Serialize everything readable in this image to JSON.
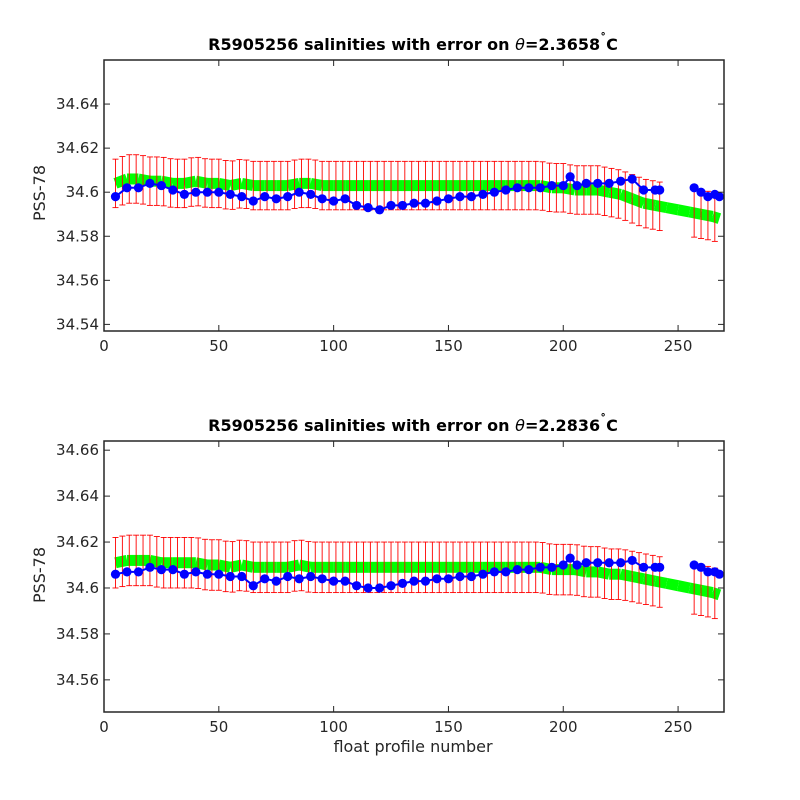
{
  "chart_data": [
    {
      "type": "scatter",
      "title": "R5905256 salinities with error on θ=2.3658˚C",
      "title_parts": {
        "prefix": "R5905256 salinities with error on ",
        "theta": "θ",
        "suffix": "=2.3658",
        "degree": "˚",
        "unit": "C"
      },
      "xlabel": "",
      "ylabel": "PSS-78",
      "xlim": [
        0,
        270
      ],
      "ylim": [
        34.537,
        34.66
      ],
      "xticks": [
        0,
        50,
        100,
        150,
        200,
        250
      ],
      "xtick_labels": [
        "0",
        "50",
        "100",
        "150",
        "200",
        "250"
      ],
      "yticks": [
        34.54,
        34.56,
        34.58,
        34.6,
        34.62,
        34.64
      ],
      "ytick_labels": [
        "34.54",
        "34.56",
        "34.58",
        "34.6",
        "34.62",
        "34.64"
      ],
      "grid": false,
      "series": [
        {
          "role": "float salinity",
          "color": "#0000ff",
          "x": [
            5,
            10,
            15,
            20,
            25,
            30,
            35,
            40,
            45,
            50,
            55,
            60,
            65,
            70,
            75,
            80,
            85,
            90,
            95,
            100,
            105,
            110,
            115,
            120,
            125,
            130,
            135,
            140,
            145,
            150,
            155,
            160,
            165,
            170,
            175,
            180,
            185,
            190,
            195,
            200,
            203,
            206,
            210,
            215,
            220,
            225,
            230,
            235,
            240,
            242,
            257,
            260,
            263,
            266,
            268
          ],
          "y": [
            34.598,
            34.602,
            34.602,
            34.604,
            34.603,
            34.601,
            34.599,
            34.6,
            34.6,
            34.6,
            34.599,
            34.598,
            34.596,
            34.598,
            34.597,
            34.598,
            34.6,
            34.599,
            34.597,
            34.596,
            34.597,
            34.594,
            34.593,
            34.592,
            34.594,
            34.594,
            34.595,
            34.595,
            34.596,
            34.597,
            34.598,
            34.598,
            34.599,
            34.6,
            34.601,
            34.602,
            34.602,
            34.602,
            34.603,
            34.603,
            34.607,
            34.603,
            34.604,
            34.604,
            34.604,
            34.605,
            34.606,
            34.601,
            34.601,
            34.601,
            34.602,
            34.6,
            34.598,
            34.599,
            34.598
          ]
        },
        {
          "role": "mapped salinity",
          "color": "#00ff00",
          "x": [
            5,
            10,
            15,
            20,
            25,
            30,
            35,
            40,
            45,
            50,
            55,
            60,
            65,
            70,
            75,
            80,
            85,
            90,
            95,
            100,
            105,
            110,
            115,
            120,
            125,
            130,
            135,
            140,
            145,
            150,
            155,
            160,
            165,
            170,
            175,
            180,
            185,
            190,
            195,
            200,
            205,
            210,
            215,
            220,
            225,
            230,
            235,
            240,
            245,
            250,
            255,
            260,
            265,
            268
          ],
          "y": [
            34.604,
            34.606,
            34.606,
            34.605,
            34.605,
            34.604,
            34.604,
            34.605,
            34.604,
            34.604,
            34.603,
            34.604,
            34.603,
            34.603,
            34.603,
            34.603,
            34.604,
            34.604,
            34.603,
            34.603,
            34.603,
            34.603,
            34.603,
            34.603,
            34.603,
            34.603,
            34.603,
            34.603,
            34.603,
            34.603,
            34.603,
            34.603,
            34.603,
            34.603,
            34.603,
            34.603,
            34.603,
            34.603,
            34.602,
            34.602,
            34.601,
            34.601,
            34.601,
            34.6,
            34.599,
            34.597,
            34.595,
            34.594,
            34.593,
            34.592,
            34.591,
            34.59,
            34.589,
            34.588
          ]
        },
        {
          "role": "mapping error",
          "color": "#ff0000",
          "x_start": 5,
          "x_end": 268,
          "x_step": 3,
          "error": 0.011,
          "breaks": [
            [
              243,
              257
            ]
          ]
        }
      ]
    },
    {
      "type": "scatter",
      "title": "R5905256 salinities with error on θ=2.2836˚C",
      "title_parts": {
        "prefix": "R5905256 salinities with error on ",
        "theta": "θ",
        "suffix": "=2.2836",
        "degree": "˚",
        "unit": "C"
      },
      "xlabel": "float profile number",
      "ylabel": "PSS-78",
      "xlim": [
        0,
        270
      ],
      "ylim": [
        34.546,
        34.664
      ],
      "xticks": [
        0,
        50,
        100,
        150,
        200,
        250
      ],
      "xtick_labels": [
        "0",
        "50",
        "100",
        "150",
        "200",
        "250"
      ],
      "yticks": [
        34.56,
        34.58,
        34.6,
        34.62,
        34.64,
        34.66
      ],
      "ytick_labels": [
        "34.56",
        "34.58",
        "34.6",
        "34.62",
        "34.64",
        "34.66"
      ],
      "grid": false,
      "series": [
        {
          "role": "float salinity",
          "color": "#0000ff",
          "x": [
            5,
            10,
            15,
            20,
            25,
            30,
            35,
            40,
            45,
            50,
            55,
            60,
            65,
            70,
            75,
            80,
            85,
            90,
            95,
            100,
            105,
            110,
            115,
            120,
            125,
            130,
            135,
            140,
            145,
            150,
            155,
            160,
            165,
            170,
            175,
            180,
            185,
            190,
            195,
            200,
            203,
            206,
            210,
            215,
            220,
            225,
            230,
            235,
            240,
            242,
            257,
            260,
            263,
            266,
            268
          ],
          "y": [
            34.606,
            34.607,
            34.607,
            34.609,
            34.608,
            34.608,
            34.606,
            34.607,
            34.606,
            34.606,
            34.605,
            34.605,
            34.601,
            34.604,
            34.603,
            34.605,
            34.604,
            34.605,
            34.604,
            34.603,
            34.603,
            34.601,
            34.6,
            34.6,
            34.601,
            34.602,
            34.603,
            34.603,
            34.604,
            34.604,
            34.605,
            34.605,
            34.606,
            34.607,
            34.607,
            34.608,
            34.608,
            34.609,
            34.609,
            34.61,
            34.613,
            34.61,
            34.611,
            34.611,
            34.611,
            34.611,
            34.612,
            34.609,
            34.609,
            34.609,
            34.61,
            34.609,
            34.607,
            34.607,
            34.606
          ]
        },
        {
          "role": "mapped salinity",
          "color": "#00ff00",
          "x": [
            5,
            10,
            15,
            20,
            25,
            30,
            35,
            40,
            45,
            50,
            55,
            60,
            65,
            70,
            75,
            80,
            85,
            90,
            95,
            100,
            105,
            110,
            115,
            120,
            125,
            130,
            135,
            140,
            145,
            150,
            155,
            160,
            165,
            170,
            175,
            180,
            185,
            190,
            195,
            200,
            205,
            210,
            215,
            220,
            225,
            230,
            235,
            240,
            245,
            250,
            255,
            260,
            265,
            268
          ],
          "y": [
            34.611,
            34.612,
            34.612,
            34.612,
            34.611,
            34.611,
            34.611,
            34.611,
            34.61,
            34.61,
            34.609,
            34.61,
            34.609,
            34.609,
            34.609,
            34.609,
            34.61,
            34.609,
            34.609,
            34.609,
            34.609,
            34.609,
            34.609,
            34.609,
            34.609,
            34.609,
            34.609,
            34.609,
            34.609,
            34.609,
            34.609,
            34.609,
            34.609,
            34.609,
            34.609,
            34.609,
            34.609,
            34.609,
            34.608,
            34.608,
            34.608,
            34.607,
            34.607,
            34.606,
            34.606,
            34.605,
            34.604,
            34.603,
            34.602,
            34.601,
            34.6,
            34.599,
            34.598,
            34.597
          ]
        },
        {
          "role": "mapping error",
          "color": "#ff0000",
          "x_start": 5,
          "x_end": 268,
          "x_step": 3,
          "error": 0.011,
          "breaks": [
            [
              243,
              257
            ]
          ]
        }
      ]
    }
  ]
}
